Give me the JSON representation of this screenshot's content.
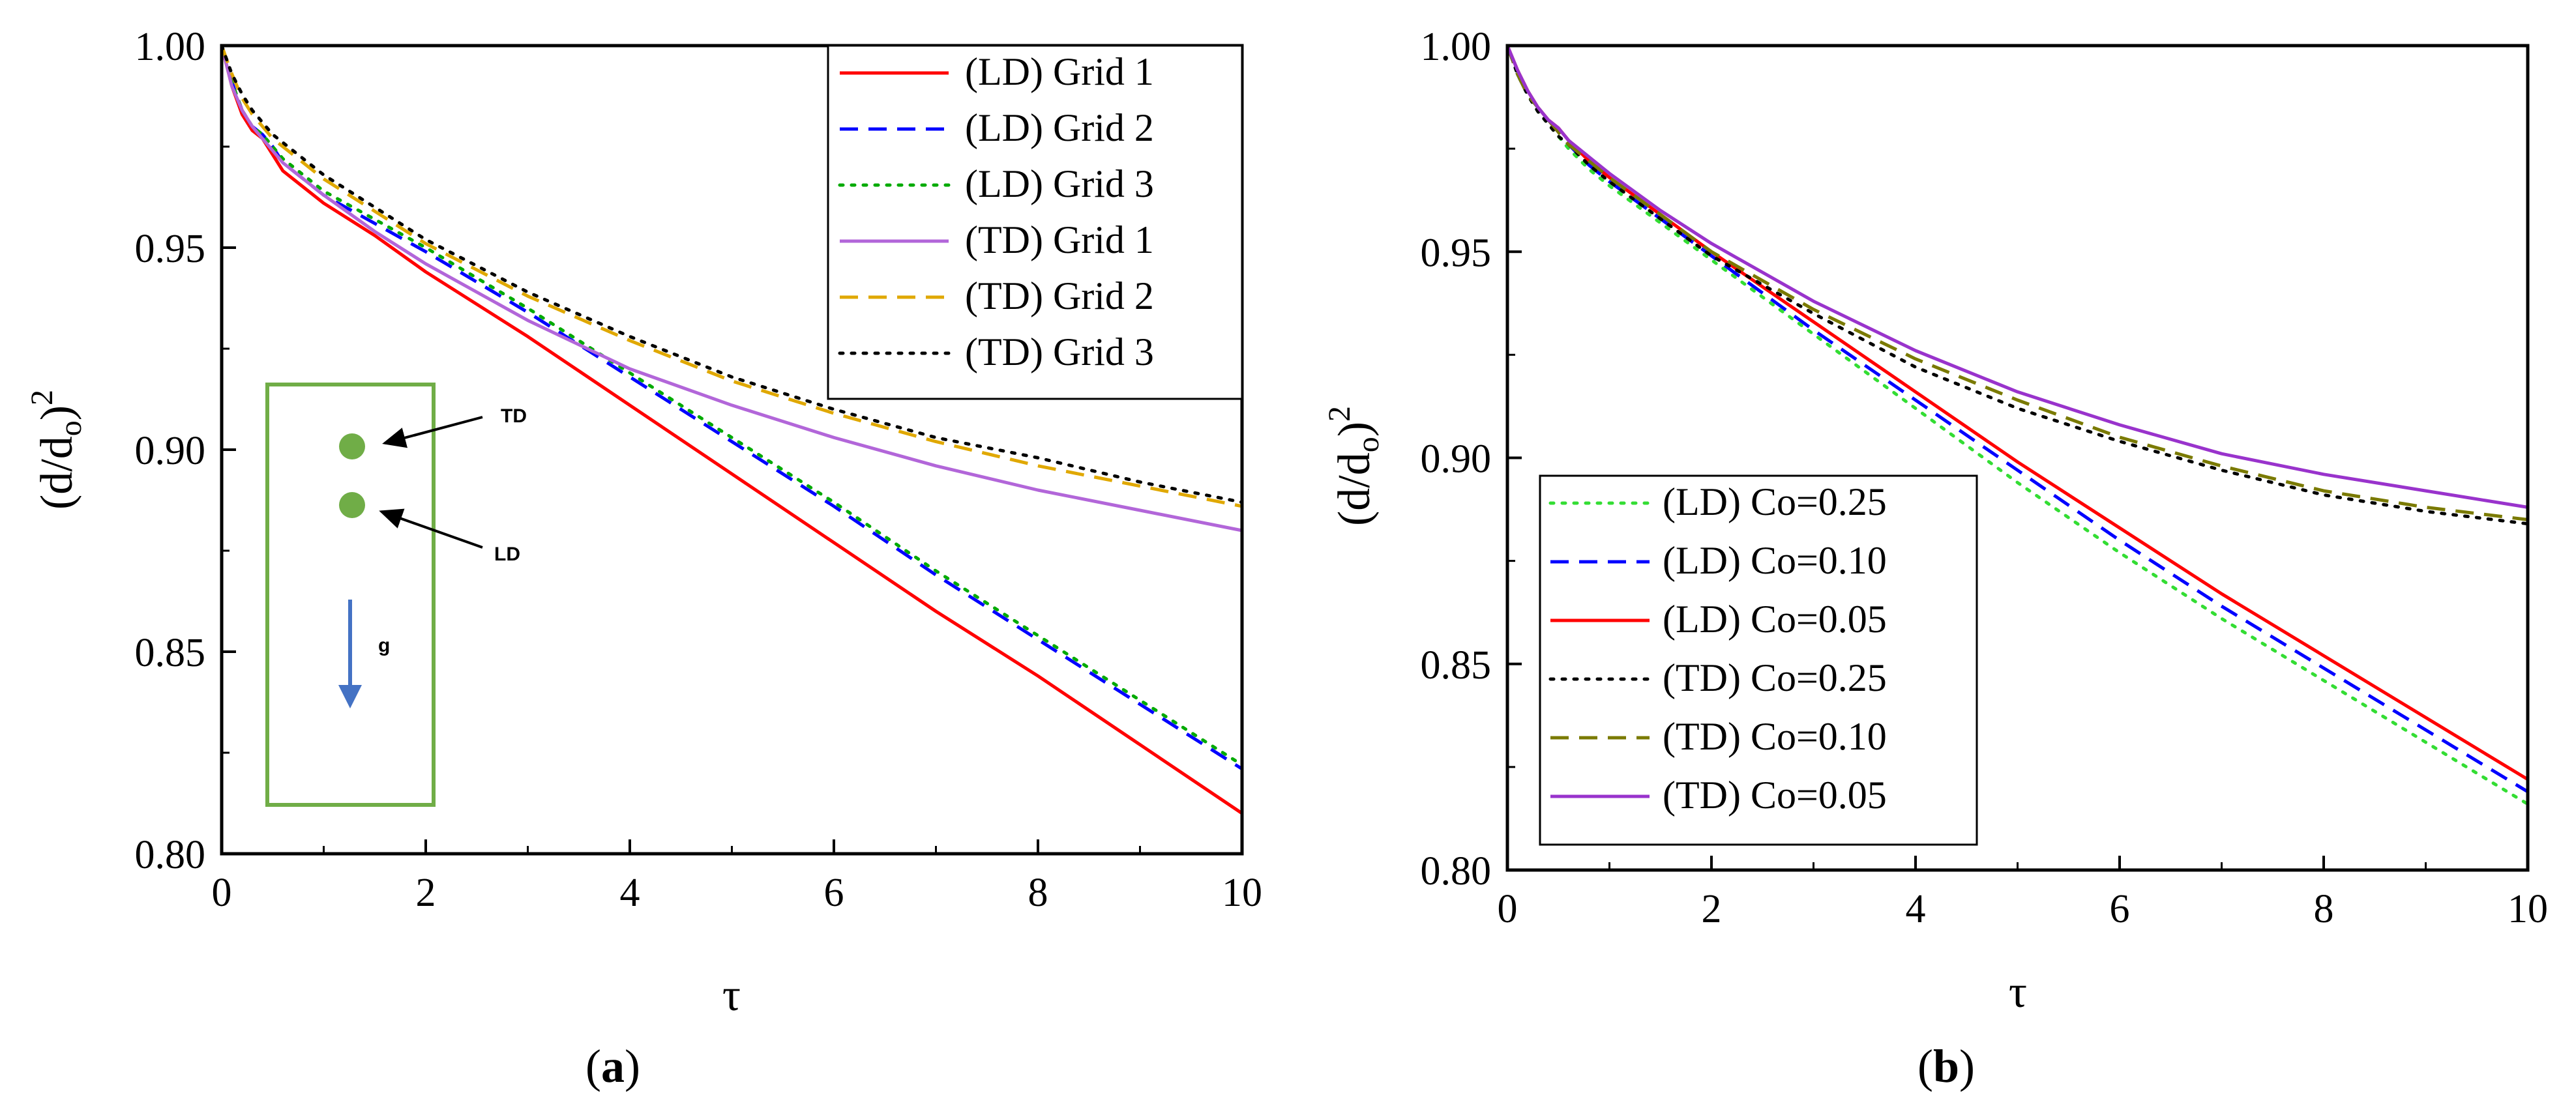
{
  "chart_data": [
    {
      "type": "line",
      "panel_label": "(a)",
      "xlabel": "τ",
      "ylabel": "(d/d0)2",
      "xlim": [
        0,
        10
      ],
      "ylim": [
        0.8,
        1.0
      ],
      "xticks": [
        "0",
        "2",
        "4",
        "6",
        "8",
        "10"
      ],
      "yticks": [
        "0.80",
        "0.85",
        "0.90",
        "0.95",
        "1.00"
      ],
      "legend_position": "top-right",
      "series": [
        {
          "name": "(LD) Grid 1",
          "color": "#ff0000",
          "dash": "solid",
          "x": [
            0,
            0.1,
            0.2,
            0.3,
            0.4,
            0.5,
            0.6,
            0.8,
            1,
            1.5,
            2,
            3,
            4,
            5,
            6,
            7,
            8,
            9,
            10
          ],
          "y": [
            1.0,
            0.99,
            0.983,
            0.979,
            0.977,
            0.973,
            0.969,
            0.965,
            0.961,
            0.953,
            0.944,
            0.928,
            0.911,
            0.894,
            0.877,
            0.86,
            0.844,
            0.827,
            0.81
          ]
        },
        {
          "name": "(LD) Grid 2",
          "color": "#0000ff",
          "dash": "dashed",
          "x": [
            0,
            0.1,
            0.2,
            0.3,
            0.4,
            0.5,
            0.6,
            0.8,
            1,
            1.5,
            2,
            3,
            4,
            5,
            6,
            7,
            8,
            9,
            10
          ],
          "y": [
            1.0,
            0.991,
            0.984,
            0.98,
            0.978,
            0.975,
            0.971,
            0.967,
            0.963,
            0.956,
            0.949,
            0.934,
            0.918,
            0.902,
            0.886,
            0.869,
            0.853,
            0.837,
            0.821
          ]
        },
        {
          "name": "(LD) Grid 3",
          "color": "#00aa00",
          "dash": "dotted",
          "x": [
            0,
            0.1,
            0.2,
            0.3,
            0.4,
            0.5,
            0.6,
            0.8,
            1,
            1.5,
            2,
            3,
            4,
            5,
            6,
            7,
            8,
            9,
            10
          ],
          "y": [
            1.0,
            0.991,
            0.984,
            0.98,
            0.978,
            0.975,
            0.972,
            0.968,
            0.964,
            0.957,
            0.95,
            0.935,
            0.919,
            0.903,
            0.887,
            0.87,
            0.854,
            0.838,
            0.822
          ]
        },
        {
          "name": "(TD) Grid 1",
          "color": "#b266d9",
          "dash": "solid",
          "x": [
            0,
            0.1,
            0.2,
            0.3,
            0.4,
            0.5,
            0.6,
            0.8,
            1,
            1.5,
            2,
            3,
            4,
            5,
            6,
            7,
            8,
            9,
            10
          ],
          "y": [
            1.0,
            0.99,
            0.984,
            0.98,
            0.977,
            0.974,
            0.971,
            0.967,
            0.963,
            0.954,
            0.946,
            0.932,
            0.92,
            0.911,
            0.903,
            0.896,
            0.89,
            0.885,
            0.88
          ]
        },
        {
          "name": "(TD) Grid 2",
          "color": "#e0a800",
          "dash": "dashed",
          "x": [
            0,
            0.1,
            0.2,
            0.3,
            0.4,
            0.5,
            0.6,
            0.8,
            1,
            1.5,
            2,
            3,
            4,
            5,
            6,
            7,
            8,
            9,
            10
          ],
          "y": [
            1.0,
            0.993,
            0.987,
            0.983,
            0.98,
            0.977,
            0.975,
            0.971,
            0.967,
            0.959,
            0.951,
            0.938,
            0.927,
            0.917,
            0.909,
            0.902,
            0.896,
            0.891,
            0.886
          ]
        },
        {
          "name": "(TD) Grid 3",
          "color": "#000000",
          "dash": "dotted",
          "x": [
            0,
            0.1,
            0.2,
            0.3,
            0.4,
            0.5,
            0.6,
            0.8,
            1,
            1.5,
            2,
            3,
            4,
            5,
            6,
            7,
            8,
            9,
            10
          ],
          "y": [
            1.0,
            0.993,
            0.988,
            0.984,
            0.981,
            0.978,
            0.976,
            0.972,
            0.968,
            0.96,
            0.952,
            0.939,
            0.928,
            0.918,
            0.91,
            0.903,
            0.898,
            0.892,
            0.887
          ]
        }
      ],
      "inset": {
        "labels": [
          "TD",
          "LD",
          "g"
        ],
        "frame_color": "#70ad47",
        "droplet_color": "#70ad47",
        "arrow_color": "#4472c4"
      }
    },
    {
      "type": "line",
      "panel_label": "(b)",
      "xlabel": "τ",
      "ylabel": "(d/d0)2",
      "xlim": [
        0,
        10
      ],
      "ylim": [
        0.8,
        1.0
      ],
      "xticks": [
        "0",
        "2",
        "4",
        "6",
        "8",
        "10"
      ],
      "yticks": [
        "0.80",
        "0.85",
        "0.90",
        "0.95",
        "1.00"
      ],
      "legend_position": "bottom-left",
      "series": [
        {
          "name": "(LD) Co=0.25",
          "color": "#33dd33",
          "dash": "dotted",
          "x": [
            0,
            0.1,
            0.2,
            0.3,
            0.4,
            0.5,
            0.6,
            0.8,
            1,
            1.5,
            2,
            3,
            4,
            5,
            6,
            7,
            8,
            9,
            10
          ],
          "y": [
            1.0,
            0.993,
            0.988,
            0.984,
            0.981,
            0.978,
            0.975,
            0.97,
            0.966,
            0.957,
            0.948,
            0.93,
            0.912,
            0.894,
            0.877,
            0.861,
            0.846,
            0.831,
            0.816
          ]
        },
        {
          "name": "(LD) Co=0.10",
          "color": "#0000ff",
          "dash": "dashed",
          "x": [
            0,
            0.1,
            0.2,
            0.3,
            0.4,
            0.5,
            0.6,
            0.8,
            1,
            1.5,
            2,
            3,
            4,
            5,
            6,
            7,
            8,
            9,
            10
          ],
          "y": [
            1.0,
            0.993,
            0.988,
            0.985,
            0.982,
            0.979,
            0.976,
            0.971,
            0.967,
            0.958,
            0.949,
            0.931,
            0.914,
            0.897,
            0.88,
            0.864,
            0.849,
            0.834,
            0.819
          ]
        },
        {
          "name": "(LD) Co=0.05",
          "color": "#ff0000",
          "dash": "solid",
          "x": [
            0,
            0.1,
            0.2,
            0.3,
            0.4,
            0.5,
            0.6,
            0.8,
            1,
            1.5,
            2,
            3,
            4,
            5,
            6,
            7,
            8,
            9,
            10
          ],
          "y": [
            1.0,
            0.994,
            0.989,
            0.985,
            0.982,
            0.98,
            0.977,
            0.972,
            0.968,
            0.959,
            0.95,
            0.933,
            0.916,
            0.899,
            0.883,
            0.867,
            0.852,
            0.837,
            0.822
          ]
        },
        {
          "name": "(TD) Co=0.25",
          "color": "#000000",
          "dash": "dotted",
          "x": [
            0,
            0.1,
            0.2,
            0.3,
            0.4,
            0.5,
            0.6,
            0.8,
            1,
            1.5,
            2,
            3,
            4,
            5,
            6,
            7,
            8,
            9,
            10
          ],
          "y": [
            1.0,
            0.993,
            0.988,
            0.984,
            0.981,
            0.978,
            0.976,
            0.971,
            0.967,
            0.958,
            0.949,
            0.935,
            0.922,
            0.912,
            0.904,
            0.897,
            0.891,
            0.887,
            0.884
          ]
        },
        {
          "name": "(TD) Co=0.10",
          "color": "#7a7a00",
          "dash": "dashed",
          "x": [
            0,
            0.1,
            0.2,
            0.3,
            0.4,
            0.5,
            0.6,
            0.8,
            1,
            1.5,
            2,
            3,
            4,
            5,
            6,
            7,
            8,
            9,
            10
          ],
          "y": [
            1.0,
            0.993,
            0.988,
            0.985,
            0.982,
            0.979,
            0.976,
            0.972,
            0.968,
            0.959,
            0.95,
            0.936,
            0.924,
            0.914,
            0.905,
            0.898,
            0.892,
            0.888,
            0.885
          ]
        },
        {
          "name": "(TD) Co=0.05",
          "color": "#9933cc",
          "dash": "solid",
          "x": [
            0,
            0.1,
            0.2,
            0.3,
            0.4,
            0.5,
            0.6,
            0.8,
            1,
            1.5,
            2,
            3,
            4,
            5,
            6,
            7,
            8,
            9,
            10
          ],
          "y": [
            1.0,
            0.994,
            0.989,
            0.985,
            0.982,
            0.98,
            0.977,
            0.973,
            0.969,
            0.96,
            0.952,
            0.938,
            0.926,
            0.916,
            0.908,
            0.901,
            0.896,
            0.892,
            0.888
          ]
        }
      ]
    }
  ]
}
